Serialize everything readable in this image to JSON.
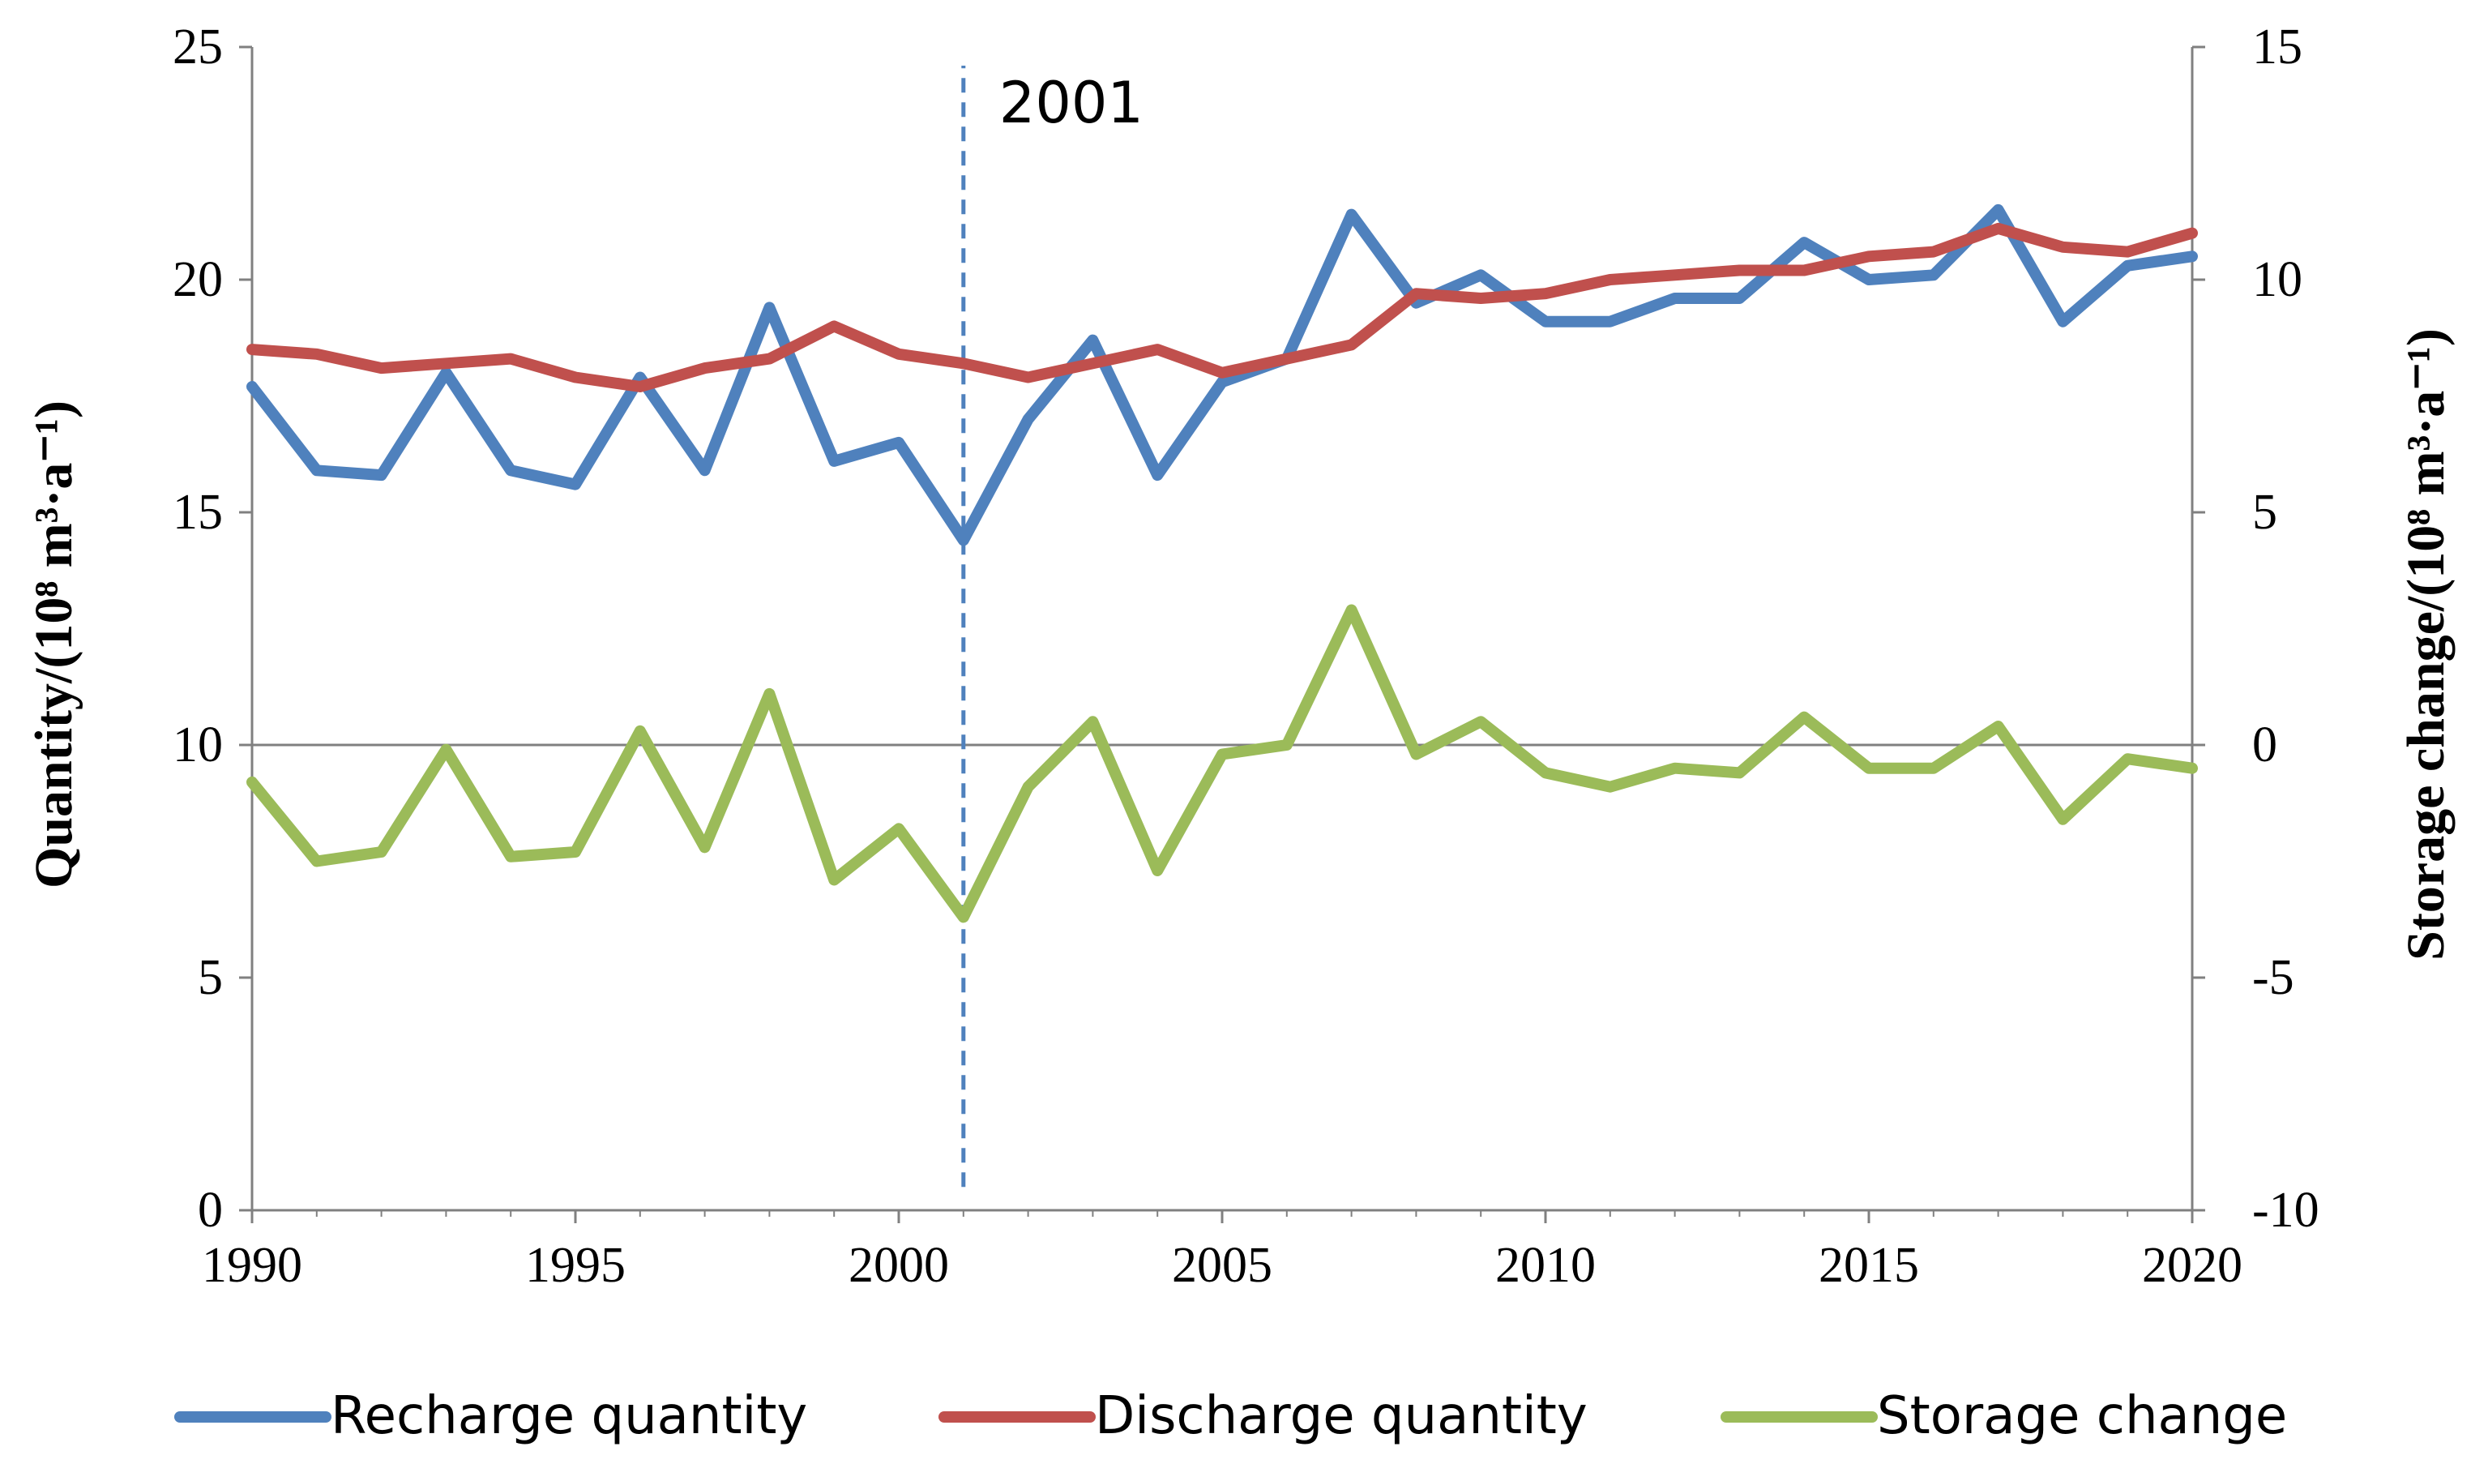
{
  "chart_data": {
    "type": "line",
    "title": "",
    "xlabel": "",
    "ylabel_left": "Quantity/(10⁸ m³·a⁻¹)",
    "ylabel_right": "Storage change/(10⁸ m³·a⁻¹)",
    "xlim": [
      1990,
      2020
    ],
    "ylim_left": [
      0,
      25
    ],
    "ylim_right": [
      -10,
      15
    ],
    "x_ticks": [
      "1990",
      "1995",
      "2000",
      "2005",
      "2010",
      "2015",
      "2020"
    ],
    "y_left_ticks": [
      "0",
      "5",
      "10",
      "15",
      "20",
      "25"
    ],
    "y_right_ticks": [
      "-10",
      "-5",
      "0",
      "5",
      "10",
      "15"
    ],
    "x": [
      1990,
      1991,
      1992,
      1993,
      1994,
      1995,
      1996,
      1997,
      1998,
      1999,
      2000,
      2001,
      2002,
      2003,
      2004,
      2005,
      2006,
      2007,
      2008,
      2009,
      2010,
      2011,
      2012,
      2013,
      2014,
      2015,
      2016,
      2017,
      2018,
      2019,
      2020
    ],
    "series": [
      {
        "name": "Recharge quantity",
        "axis": "left",
        "color": "#4F81BD",
        "values": [
          17.7,
          15.9,
          15.8,
          18.0,
          15.9,
          15.6,
          17.9,
          15.9,
          19.4,
          16.1,
          16.5,
          14.4,
          17.0,
          18.7,
          15.8,
          17.8,
          18.3,
          21.4,
          19.5,
          20.1,
          19.1,
          19.1,
          19.6,
          19.6,
          20.8,
          20.0,
          20.1,
          21.5,
          19.1,
          20.3,
          20.5
        ]
      },
      {
        "name": "Discharge quantity",
        "axis": "left",
        "color": "#C0504D",
        "values": [
          18.5,
          18.4,
          18.1,
          18.2,
          18.3,
          17.9,
          17.7,
          18.1,
          18.3,
          19.0,
          18.4,
          18.2,
          17.9,
          18.2,
          18.5,
          18.0,
          18.3,
          18.6,
          19.7,
          19.6,
          19.7,
          20.0,
          20.1,
          20.2,
          20.2,
          20.5,
          20.6,
          21.1,
          20.7,
          20.6,
          21.0
        ]
      },
      {
        "name": "Storage change",
        "axis": "right",
        "color": "#9BBB59",
        "values": [
          -0.8,
          -2.5,
          -2.3,
          -0.1,
          -2.4,
          -2.3,
          0.3,
          -2.2,
          1.1,
          -2.9,
          -1.8,
          -3.7,
          -0.9,
          0.5,
          -2.7,
          -0.2,
          0.0,
          2.9,
          -0.2,
          0.5,
          -0.6,
          -0.9,
          -0.5,
          -0.6,
          0.6,
          -0.5,
          -0.5,
          0.4,
          -1.6,
          -0.3,
          -0.5
        ]
      }
    ],
    "annotations": [
      {
        "type": "vline",
        "x": 2001,
        "label": "2001",
        "color": "#4F81BD",
        "style": "dashed",
        "y_from": 0.5,
        "y_to": 24.6
      }
    ],
    "reference_lines": [
      {
        "axis": "right",
        "y": 0,
        "color": "#808080"
      }
    ],
    "grid": false,
    "legend_position": "bottom"
  }
}
